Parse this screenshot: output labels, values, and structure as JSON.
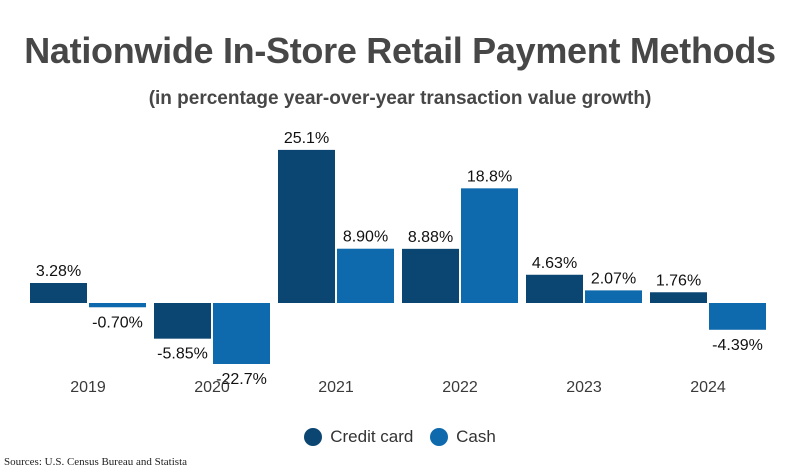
{
  "chart_data": {
    "type": "bar",
    "title": "Nationwide In-Store Retail Payment Methods",
    "subtitle": "(in percentage year-over-year transaction value growth)",
    "categories": [
      "2019",
      "2020",
      "2021",
      "2022",
      "2023",
      "2024"
    ],
    "series": [
      {
        "name": "Credit card",
        "color": "#0b4672",
        "values": [
          3.28,
          -5.85,
          25.1,
          8.88,
          4.63,
          1.76
        ],
        "labels": [
          "3.28%",
          "-5.85%",
          "25.1%",
          "8.88%",
          "4.63%",
          "1.76%"
        ]
      },
      {
        "name": "Cash",
        "color": "#0f6aad",
        "values": [
          -0.7,
          -22.7,
          8.9,
          18.8,
          2.07,
          -4.39
        ],
        "labels": [
          "-0.70%",
          "-22.7%",
          "8.90%",
          "18.8%",
          "2.07%",
          "-4.39%"
        ]
      }
    ],
    "cash_2020_display_value": -10.0,
    "grid": false,
    "legend": "bottom"
  },
  "source": "Sources: U.S. Census Bureau and Statista"
}
